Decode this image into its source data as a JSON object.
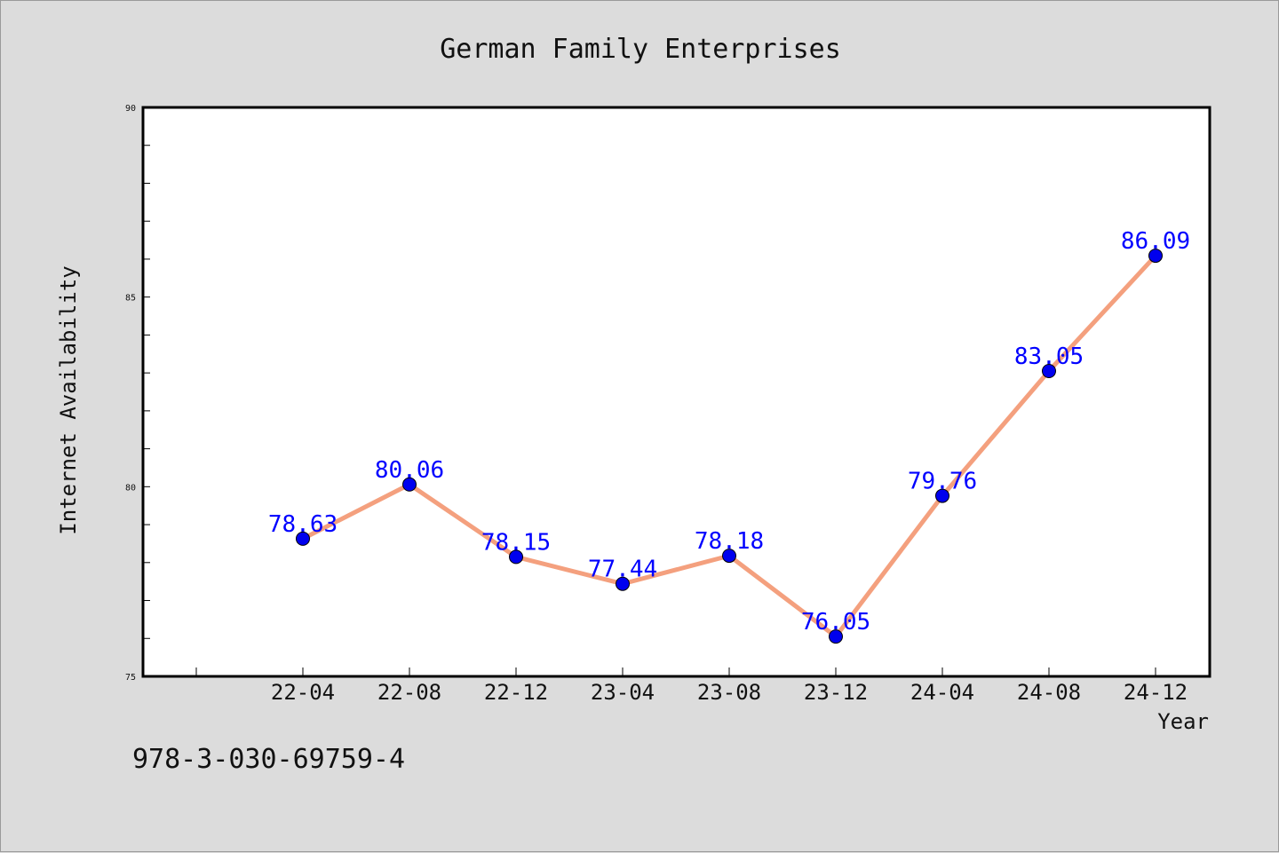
{
  "chart_data": {
    "type": "line",
    "title": "German Family Enterprises",
    "xlabel": "Year",
    "ylabel": "Internet Availability",
    "categories": [
      "22-04",
      "22-08",
      "22-12",
      "23-04",
      "23-08",
      "23-12",
      "24-04",
      "24-08",
      "24-12"
    ],
    "series": [
      {
        "values": [
          78.63,
          80.06,
          78.15,
          77.44,
          78.18,
          76.05,
          79.76,
          83.05,
          86.09
        ]
      }
    ],
    "data_labels": [
      "78.63",
      "80.06",
      "78.15",
      "77.44",
      "78.18",
      "76.05",
      "79.76",
      "83.05",
      "86.09"
    ],
    "ylim": [
      75,
      90
    ],
    "yticks": [
      75,
      80,
      85,
      90
    ],
    "ytick_labels": [
      "75",
      "80",
      "85",
      "90"
    ],
    "grid": false,
    "legend": "none",
    "colors": {
      "line": "#f4a07e",
      "marker": "#0000ee",
      "label": "#0000ff"
    }
  },
  "footer": {
    "isbn": "978-3-030-69759-4"
  }
}
